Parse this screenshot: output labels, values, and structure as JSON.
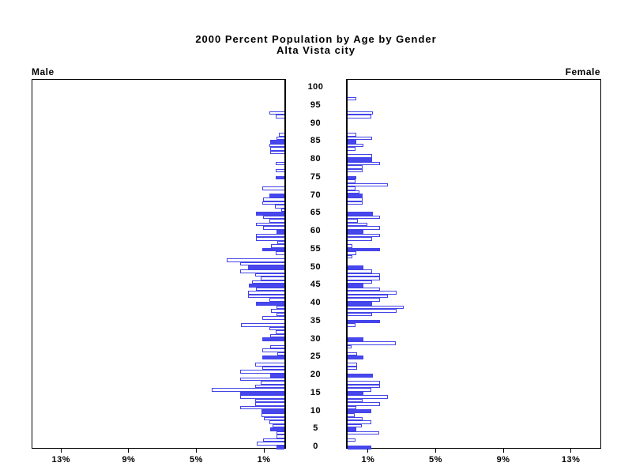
{
  "title": {
    "line1": "2000 Percent Population by Age by Gender",
    "line2": "Alta Vista city"
  },
  "panel_headers": {
    "left": "Male",
    "right": "Female"
  },
  "colors": {
    "bar_blue": "#4747ee",
    "bar_outline_blue": "#4343e8",
    "axis_black": "#000000",
    "background": "#ffffff"
  },
  "chart_data": {
    "type": "bar",
    "subtype": "population-pyramid",
    "title": "2000 Percent Population by Age by Gender",
    "subtitle": "Alta Vista city",
    "unit": "percent of population",
    "age_min": 0,
    "age_max": 100,
    "x_axis": {
      "tick_values": [
        1,
        5,
        9,
        13
      ],
      "tick_labels": [
        "1%",
        "5%",
        "9%",
        "13%"
      ],
      "max_percent": 15,
      "note": "mirrored axis: left panel runs 15%..0 toward center, right panel 0..15%"
    },
    "age_axis": {
      "tick_interval": 5,
      "tick_labels": [
        "0",
        "5",
        "10",
        "15",
        "20",
        "25",
        "30",
        "35",
        "40",
        "45",
        "50",
        "55",
        "60",
        "65",
        "70",
        "75",
        "80",
        "85",
        "90",
        "95",
        "100"
      ]
    },
    "solid_fill_rule": "bars at ages divisible by 5 are solid blue; all other ages are white with blue outline",
    "series": [
      {
        "name": "Male",
        "side": "left",
        "ages": "index equals age 0..100",
        "values": [
          0.45,
          1.65,
          1.25,
          0.45,
          0.45,
          0.85,
          0.7,
          0.9,
          1.2,
          1.35,
          1.35,
          2.6,
          1.75,
          1.75,
          2.6,
          2.6,
          4.3,
          1.75,
          1.4,
          2.6,
          0.85,
          2.6,
          1.3,
          1.75,
          0,
          1.3,
          0.4,
          1.3,
          0.85,
          0,
          1.3,
          0.85,
          0.5,
          0.9,
          2.55,
          0,
          1.3,
          0.45,
          0.8,
          0.45,
          1.7,
          0.9,
          2.15,
          2.15,
          1.7,
          2.1,
          1.9,
          1.4,
          1.75,
          2.6,
          2.15,
          2.6,
          3.4,
          0,
          0.5,
          1.3,
          0.8,
          0.4,
          1.7,
          1.7,
          0.45,
          1.25,
          1.7,
          0.9,
          1.25,
          1.7,
          0.2,
          0.55,
          1.3,
          1.25,
          0.9,
          0,
          1.3,
          0,
          0,
          0.5,
          0,
          0.5,
          0,
          0.5,
          0,
          0,
          0.85,
          0.85,
          0.9,
          0.85,
          0.45,
          0.35,
          0,
          0,
          0,
          0,
          0.5,
          0.9,
          0,
          0,
          0,
          0,
          0,
          0,
          0
        ]
      },
      {
        "name": "Female",
        "side": "right",
        "ages": "index equals age 0..100",
        "values": [
          1.4,
          0,
          0.45,
          0,
          1.85,
          0.5,
          0.85,
          1.4,
          0.9,
          0.4,
          1.4,
          0.5,
          1.9,
          0.9,
          2.4,
          0.95,
          1.4,
          1.9,
          1.9,
          0,
          1.5,
          0,
          0.55,
          0.55,
          0,
          0.95,
          0.55,
          0,
          0.25,
          2.85,
          0.95,
          0,
          0,
          0,
          0.45,
          1.9,
          0,
          1.45,
          2.9,
          3.3,
          1.45,
          1.9,
          2.4,
          2.9,
          1.9,
          0.95,
          1.45,
          1.9,
          1.9,
          1.45,
          0.95,
          0,
          0,
          0.3,
          0.5,
          1.9,
          0.3,
          0,
          1.45,
          1.9,
          0.95,
          1.9,
          1.15,
          0.6,
          1.9,
          1.5,
          0,
          0,
          0.9,
          0.9,
          0.9,
          0.7,
          0.45,
          2.4,
          0.45,
          0.5,
          0,
          0.9,
          0.9,
          1.9,
          1.45,
          1.45,
          0,
          0.45,
          0.95,
          0.5,
          1.45,
          0.5,
          0,
          0,
          0,
          0,
          1.4,
          1.5,
          0,
          0,
          0,
          0.5,
          0,
          0,
          0
        ]
      }
    ]
  }
}
